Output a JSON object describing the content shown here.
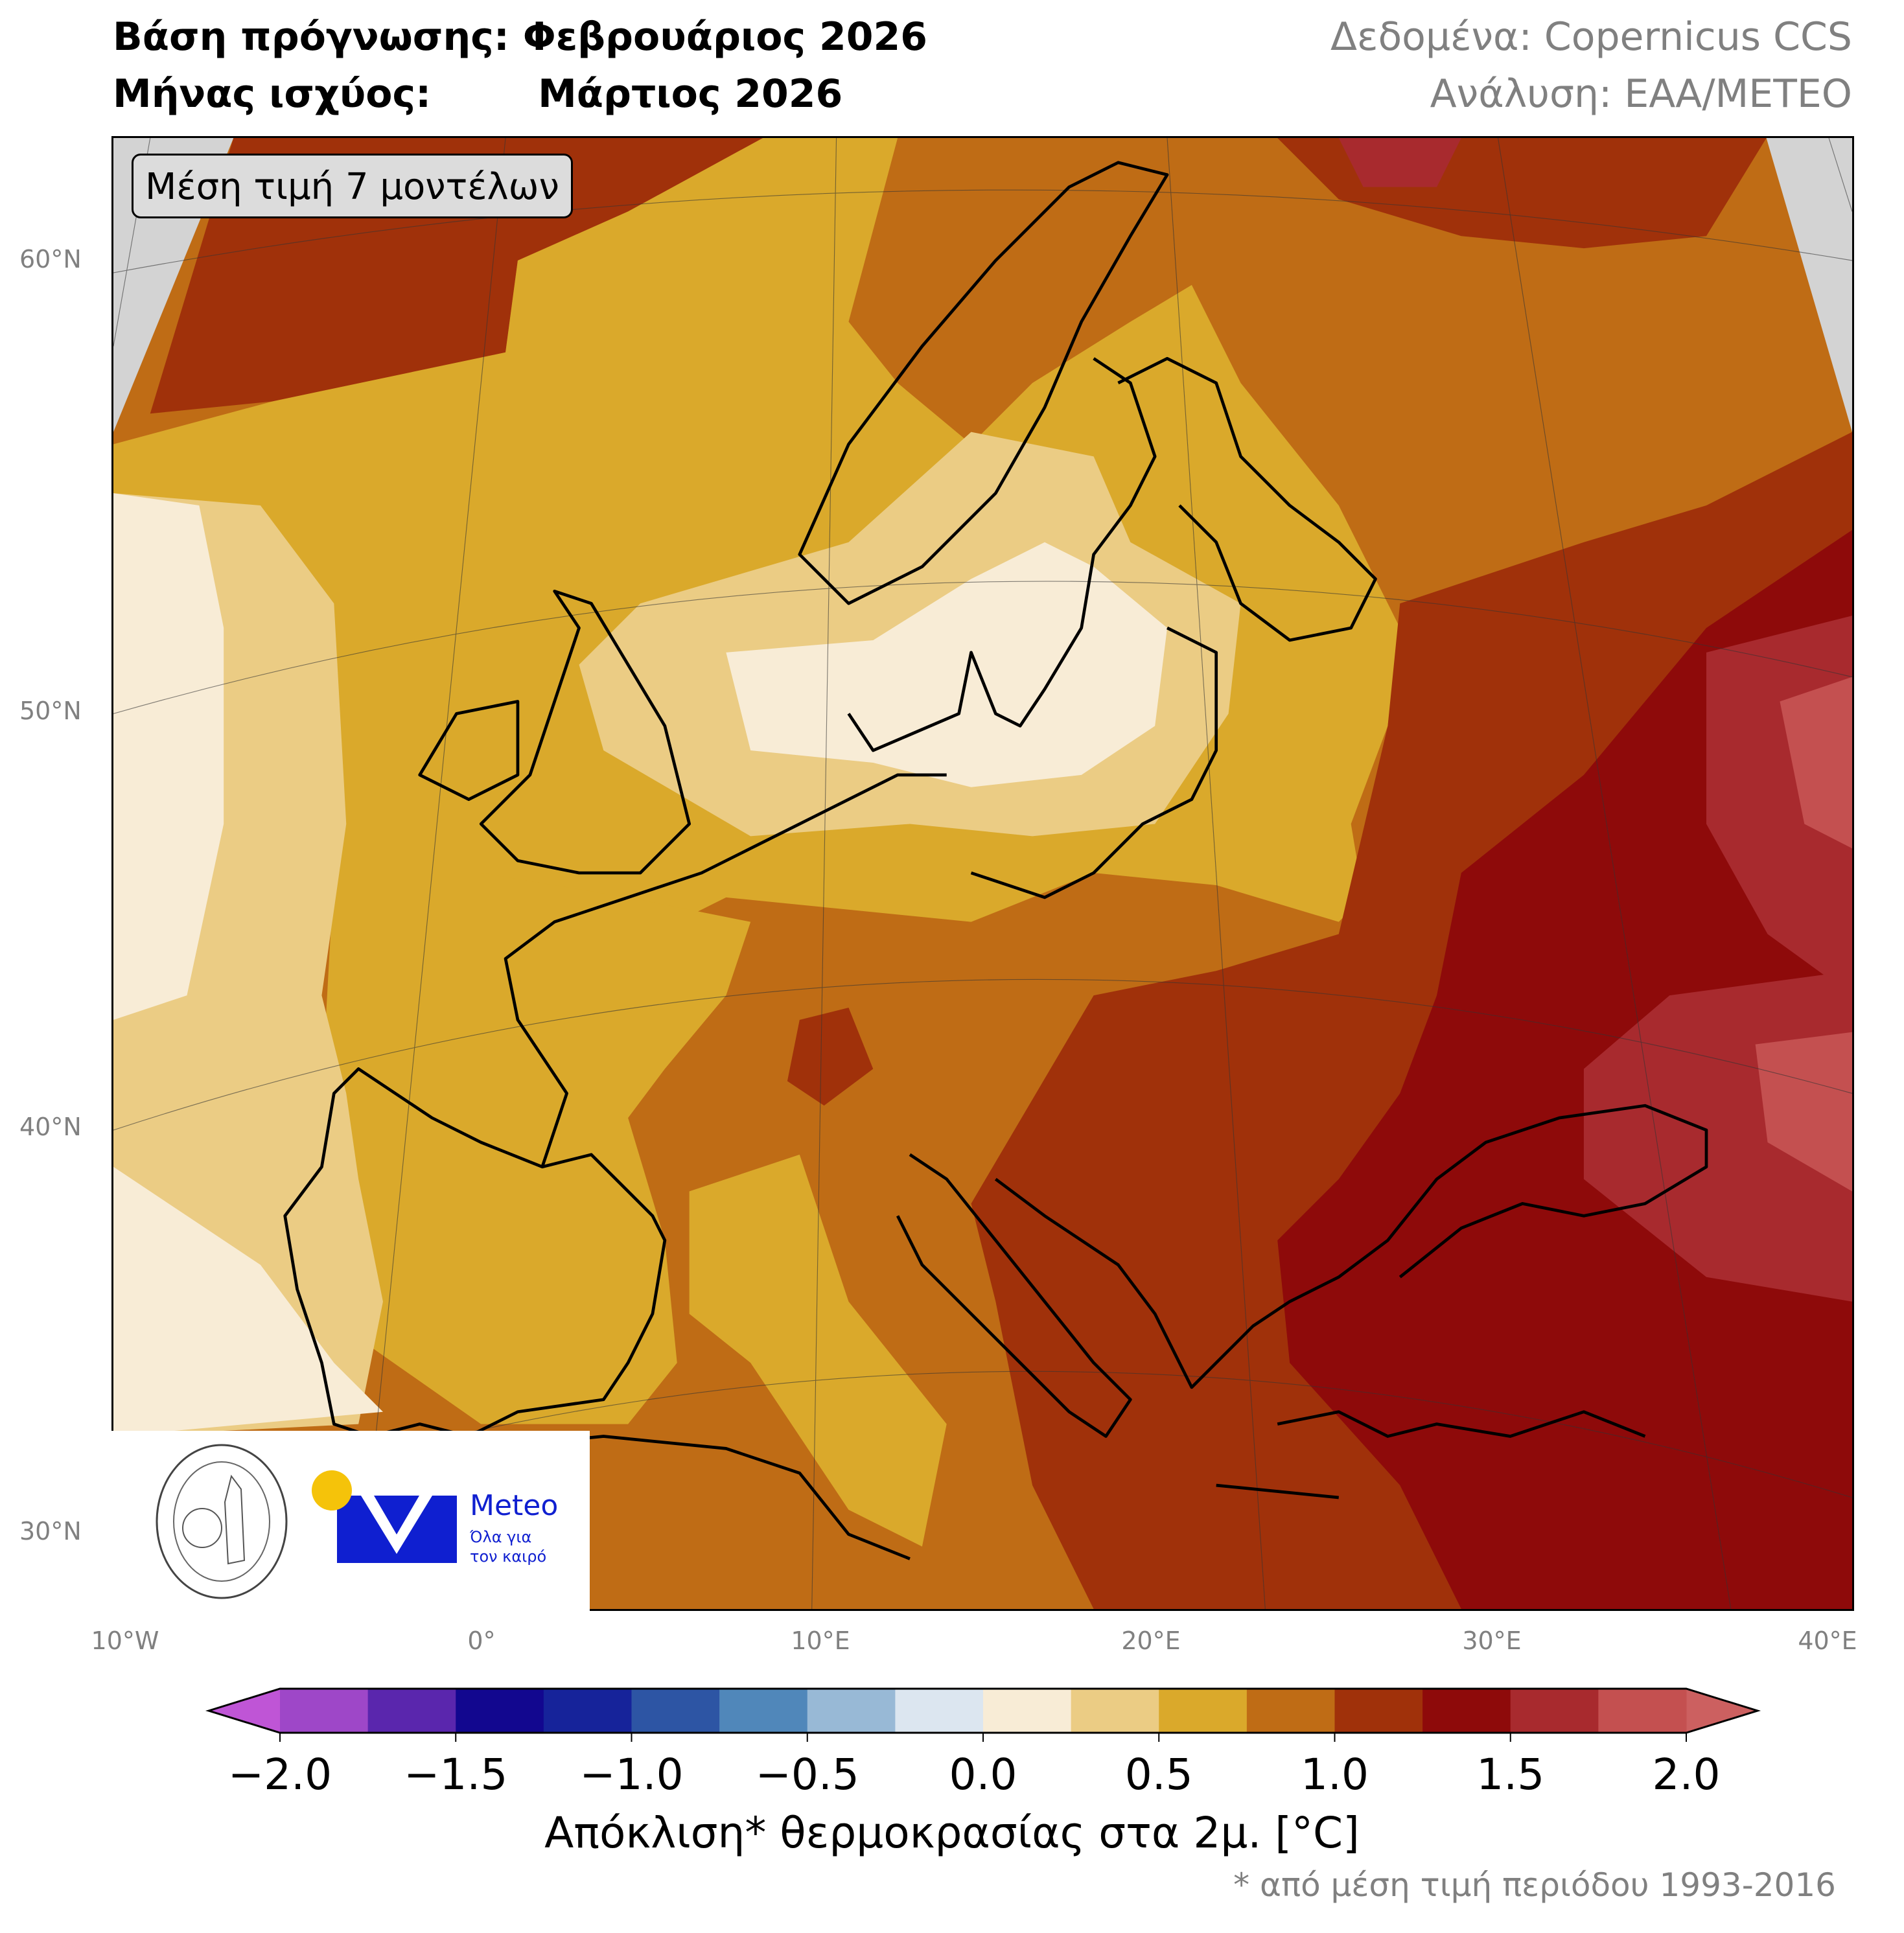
{
  "header": {
    "line1_label": "Βάση πρόγνωσης:",
    "line1_value": "Φεβρουάριος 2026",
    "line2_label": "Μήνας ισχύος:",
    "line2_value": "Μάρτιος 2026",
    "source": "Δεδομένα: Copernicus CCS",
    "analysis": "Ανάλυση: ΕΑΑ/METEO"
  },
  "map": {
    "model_box": "Μέση τιμή 7 μοντέλων",
    "lat_labels": [
      "60°N",
      "50°N",
      "40°N",
      "30°N"
    ],
    "lon_labels": [
      "10°W",
      "0°",
      "10°E",
      "20°E",
      "30°E",
      "40°E"
    ],
    "land_missing_color": "#d3d3d3",
    "coastline_color": "#000000",
    "border_color": "#808080"
  },
  "logos": {
    "noa_text": "ΕΘΝΙΚΟΝ ΑΣΤΕΡΟΣΚΟΠΕΙΟΝ ΑΘΗΝΩΝ · NATIONAL OBSERVATORY OF ATHENS",
    "meteo_name": "Meteo",
    "meteo_slogan1": "Όλα για",
    "meteo_slogan2": "τον καιρό",
    "meteo_blue": "#0f1fd0",
    "meteo_yellow": "#f5c30a"
  },
  "colorbar": {
    "ticks": [
      "−2.0",
      "−1.5",
      "−1.0",
      "−0.5",
      "0.0",
      "0.5",
      "1.0",
      "1.5",
      "2.0"
    ],
    "label": "Απόκλιση* θερμοκρασίας στα 2μ. [°C]",
    "footnote": "* από μέση τιμή περιόδου 1993-2016",
    "range": [
      -2.0,
      2.0
    ],
    "step": 0.25,
    "extend": "both",
    "under_color": "#bf55d6",
    "over_color": "#cc6060",
    "colors": [
      "#9e47c8",
      "#5a26ad",
      "#12078f",
      "#16239a",
      "#2d55a4",
      "#5087ba",
      "#98b9d6",
      "#dce6f0",
      "#f8ecd6",
      "#ebcc84",
      "#daa92b",
      "#bf6c15",
      "#a0310a",
      "#8e0a0a",
      "#a82a2e",
      "#c45050"
    ]
  }
}
